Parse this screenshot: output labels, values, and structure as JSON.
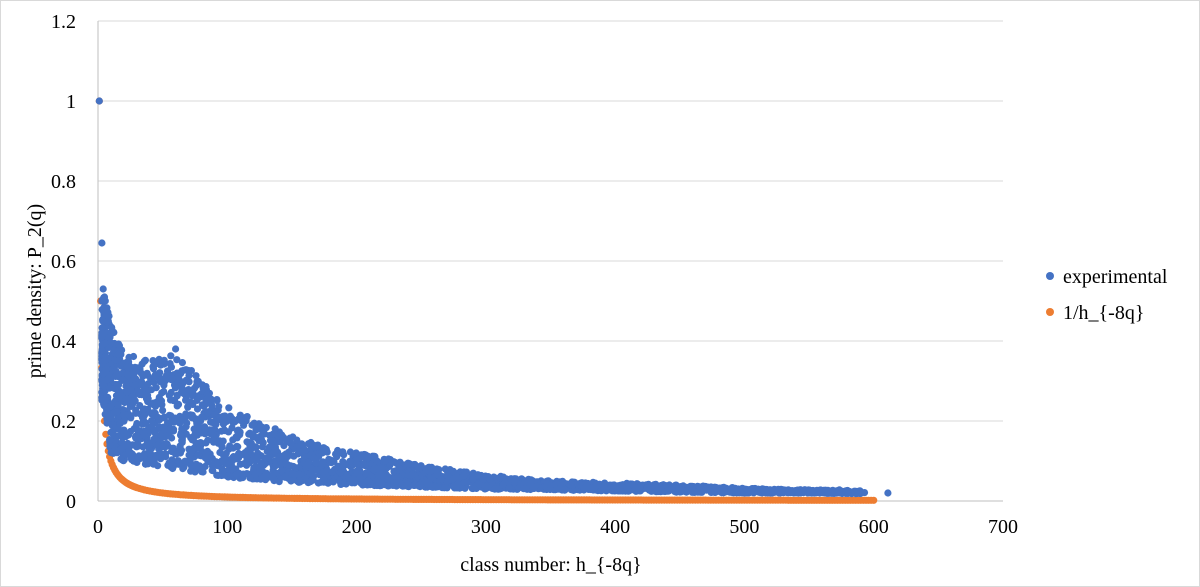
{
  "chart_data": {
    "type": "scatter",
    "title": "",
    "xlabel": "class number: h_{-8q}",
    "ylabel": "prime density:  P_2(q)",
    "xlim": [
      0,
      700
    ],
    "ylim": [
      0,
      1.2
    ],
    "x_ticks": [
      "0",
      "100",
      "200",
      "300",
      "400",
      "500",
      "600",
      "700"
    ],
    "y_ticks": [
      "0",
      "0.2",
      "0.4",
      "0.6",
      "0.8",
      "1",
      "1.2"
    ],
    "grid": "horizontal",
    "legend_position": "right",
    "series": [
      {
        "name": "experimental",
        "color": "#4472C4",
        "description_points": [
          {
            "x": 1,
            "y": 1.0
          },
          {
            "x": 3,
            "y": 0.645
          },
          {
            "x": 3,
            "y": 0.5
          },
          {
            "x": 4,
            "y": 0.53
          },
          {
            "x": 5,
            "y": 0.51
          },
          {
            "x": 6,
            "y": 0.47
          },
          {
            "x": 8,
            "y": 0.45
          },
          {
            "x": 60,
            "y": 0.38
          },
          {
            "x": 611,
            "y": 0.02
          }
        ],
        "envelope": [
          {
            "x": 4,
            "low": 0.25,
            "high": 0.52
          },
          {
            "x": 10,
            "low": 0.12,
            "high": 0.45
          },
          {
            "x": 20,
            "low": 0.1,
            "high": 0.37
          },
          {
            "x": 40,
            "low": 0.09,
            "high": 0.35
          },
          {
            "x": 60,
            "low": 0.08,
            "high": 0.37
          },
          {
            "x": 80,
            "low": 0.07,
            "high": 0.3
          },
          {
            "x": 100,
            "low": 0.06,
            "high": 0.24
          },
          {
            "x": 130,
            "low": 0.05,
            "high": 0.19
          },
          {
            "x": 160,
            "low": 0.045,
            "high": 0.15
          },
          {
            "x": 200,
            "low": 0.04,
            "high": 0.12
          },
          {
            "x": 250,
            "low": 0.035,
            "high": 0.09
          },
          {
            "x": 300,
            "low": 0.03,
            "high": 0.065
          },
          {
            "x": 350,
            "low": 0.028,
            "high": 0.05
          },
          {
            "x": 400,
            "low": 0.025,
            "high": 0.045
          },
          {
            "x": 450,
            "low": 0.022,
            "high": 0.04
          },
          {
            "x": 500,
            "low": 0.02,
            "high": 0.032
          },
          {
            "x": 550,
            "low": 0.02,
            "high": 0.028
          },
          {
            "x": 590,
            "low": 0.018,
            "high": 0.026
          }
        ]
      },
      {
        "name": "1/h_{-8q}",
        "color": "#ED7D31",
        "function": "1/x",
        "x_range": [
          1,
          600
        ]
      }
    ]
  }
}
